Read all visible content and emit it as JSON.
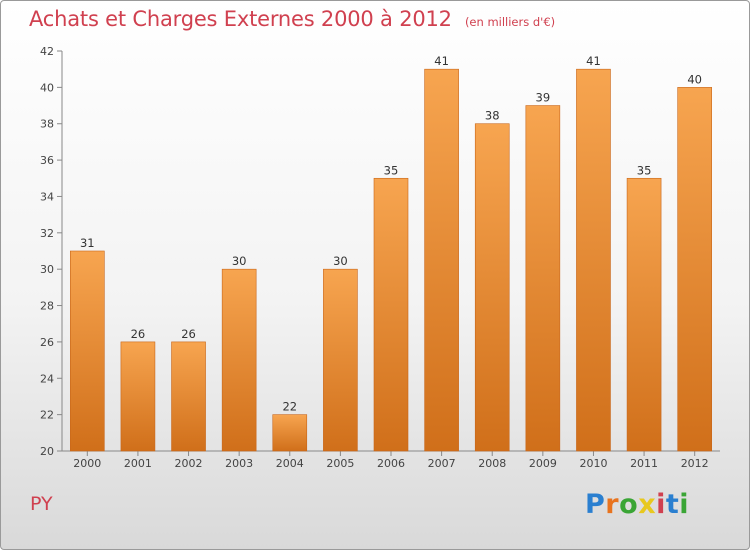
{
  "header": {
    "title": "Achats et Charges Externes 2000 à 2012",
    "unit": "(en milliers d'€)"
  },
  "footer": {
    "commune": "PY",
    "logo": {
      "text": "Proxiti",
      "letters": [
        {
          "char": "P",
          "color": "#2a7fd0"
        },
        {
          "char": "r",
          "color": "#e8731e"
        },
        {
          "char": "o",
          "color": "#3aa535"
        },
        {
          "char": "x",
          "color": "#e8c81e"
        },
        {
          "char": "i",
          "color": "#d0404f"
        },
        {
          "char": "t",
          "color": "#2a7fd0"
        },
        {
          "char": "i",
          "color": "#3aa535"
        }
      ]
    }
  },
  "chart_data": {
    "type": "bar",
    "title": "Achats et Charges Externes 2000 à 2012",
    "subtitle": "(en milliers d'€)",
    "categories": [
      "2000",
      "2001",
      "2002",
      "2003",
      "2004",
      "2005",
      "2006",
      "2007",
      "2008",
      "2009",
      "2010",
      "2011",
      "2012"
    ],
    "values": [
      31,
      26,
      26,
      30,
      22,
      30,
      35,
      41,
      38,
      39,
      41,
      35,
      40
    ],
    "ylim": [
      20,
      42
    ],
    "yticks": [
      20,
      22,
      24,
      26,
      28,
      30,
      32,
      34,
      36,
      38,
      40,
      42
    ],
    "grid": false,
    "bar_color_top": "#f7a550",
    "bar_color_bottom": "#d06f1a"
  }
}
